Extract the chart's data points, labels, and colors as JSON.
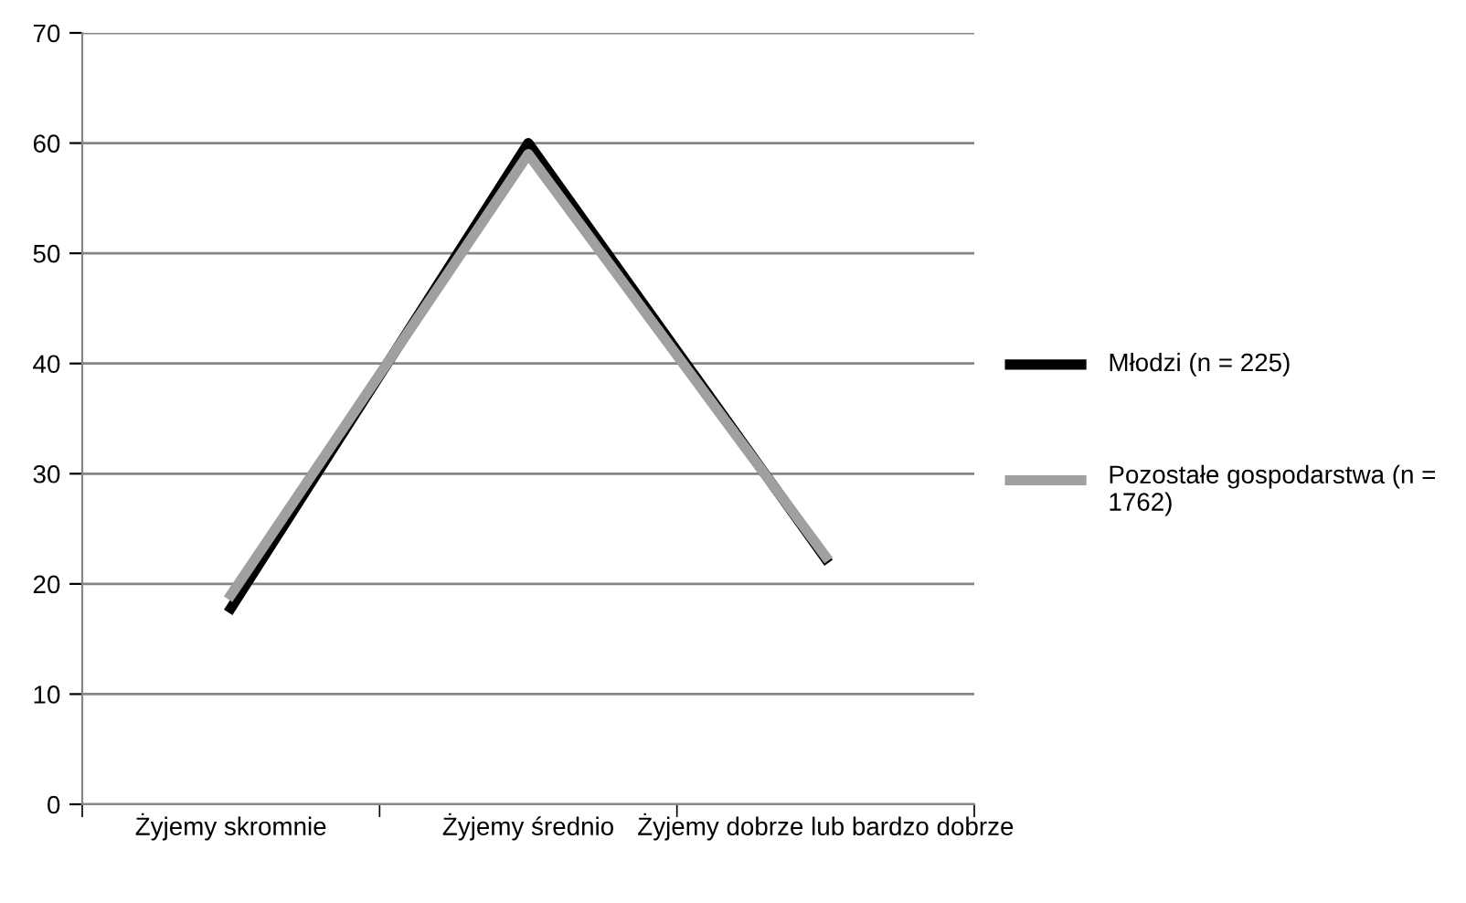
{
  "chart_data": {
    "type": "line",
    "categories": [
      "Żyjemy skromnie",
      "Żyjemy średnio",
      "Żyjemy dobrze lub bardzo dobrze"
    ],
    "series": [
      {
        "name": "Młodzi (n = 225)",
        "color": "#000000",
        "values": [
          17.8,
          60,
          22.3
        ]
      },
      {
        "name": "Pozostałe gospodarstwa (n = 1762)",
        "color": "#a0a0a0",
        "values": [
          19,
          59,
          22.5
        ]
      }
    ],
    "ylim": [
      0,
      70
    ],
    "yticks": [
      0,
      10,
      20,
      30,
      40,
      50,
      60,
      70
    ],
    "grid": "y",
    "legend": "right",
    "marker": "none",
    "line_style": "solid"
  }
}
